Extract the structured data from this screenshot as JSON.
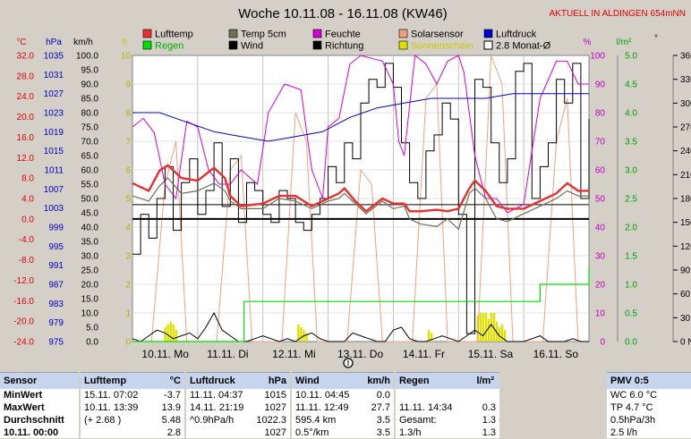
{
  "title": "Woche 10.11.08 - 16.11.08 (KW46)",
  "location_banner": "AKTUELL IN ALDINGEN 654mNN",
  "colors": {
    "lufttemp": "#e83030",
    "temp5cm": "#707058",
    "feuchte": "#d800d8",
    "solarsensor": "#f0a080",
    "luftdruck": "#0000d0",
    "regen": "#00e000",
    "wind": "#000000",
    "richtung": "#000000",
    "sonnenschein": "#e0e000",
    "monat": "#000000",
    "left_red": "#e00000",
    "left_blue": "#0000c0",
    "right_magenta": "#c000c0",
    "right_green": "#00a000"
  },
  "legend": [
    {
      "key": "lufttemp",
      "label": "Lufttemp",
      "swatch": "fill"
    },
    {
      "key": "temp5cm",
      "label": "Temp 5cm",
      "swatch": "fill"
    },
    {
      "key": "feuchte",
      "label": "Feuchte",
      "swatch": "fill"
    },
    {
      "key": "solarsensor",
      "label": "Solarsensor",
      "swatch": "fill"
    },
    {
      "key": "luftdruck",
      "label": "Luftdruck",
      "swatch": "fill"
    },
    {
      "key": "regen",
      "label": "Regen",
      "swatch": "fill"
    },
    {
      "key": "wind",
      "label": "Wind",
      "swatch": "fill"
    },
    {
      "key": "richtung",
      "label": "Richtung",
      "swatch": "fill"
    },
    {
      "key": "sonnenschein",
      "label": "Sonnenschein",
      "swatch": "fill"
    },
    {
      "key": "monat",
      "label": "2.8 Monat-Ø",
      "swatch": "outline"
    }
  ],
  "axis_headers": {
    "temp": "°C",
    "hpa": "hPa",
    "kmh": "km/h",
    "h": "h",
    "pct": "%",
    "lm2": "l/m²",
    "deg": "°"
  },
  "axes": {
    "temp": [
      "32.0",
      "28.0",
      "24.0",
      "20.0",
      "16.0",
      "12.0",
      "8.0",
      "4.0",
      "0.0",
      "-4.0",
      "-8.0",
      "-12.0",
      "-16.0",
      "-20.0",
      "-24.0"
    ],
    "hpa": [
      "1035",
      "1031",
      "1027",
      "1023",
      "1019",
      "1015",
      "1011",
      "1007",
      "1003",
      "999",
      "995",
      "991",
      "987",
      "983",
      "979",
      "975"
    ],
    "kmh": [
      "100.0",
      "95.0",
      "90.0",
      "85.0",
      "80.0",
      "75.0",
      "70.0",
      "65.0",
      "60.0",
      "55.0",
      "50.0",
      "45.0",
      "40.0",
      "35.0",
      "30.0",
      "25.0",
      "20.0",
      "15.0",
      "10.0",
      "5.0",
      "0.0"
    ],
    "h": [
      "10",
      "9",
      "8",
      "7",
      "6",
      "5",
      "4",
      "3",
      "2",
      "1",
      "0"
    ],
    "pct": [
      "100",
      "90",
      "80",
      "70",
      "60",
      "50",
      "40",
      "30",
      "20",
      "10",
      "0"
    ],
    "lm2": [
      "5.0",
      "4.5",
      "4.0",
      "3.5",
      "3.0",
      "2.5",
      "2.0",
      "1.5",
      "1.0",
      "0.5",
      "0.0"
    ],
    "deg": [
      "360 N",
      "330",
      "300",
      "270 W",
      "240",
      "210",
      "180 S",
      "150",
      "120",
      "90 O",
      "60",
      "30",
      "0 N"
    ]
  },
  "days": [
    "10.11. Mo",
    "11.11. Di",
    "12.11. Mi",
    "13.11. Do",
    "14.11. Fr",
    "15.11. Sa",
    "16.11. So"
  ],
  "chart_data": {
    "type": "line",
    "title": "Woche 10.11.08 - 16.11.08 (KW46)",
    "x": "hours since 10.11. 00:00 (0-168)",
    "series": [
      {
        "name": "Lufttemp",
        "unit": "°C",
        "x": [
          0,
          6,
          10,
          13,
          18,
          24,
          30,
          34,
          36,
          40,
          48,
          54,
          60,
          66,
          72,
          76,
          78,
          82,
          86,
          92,
          96,
          100,
          102,
          106,
          112,
          116,
          120,
          124,
          126,
          130,
          134,
          138,
          144,
          150,
          156,
          160,
          164,
          168
        ],
        "y": [
          7.0,
          5.5,
          9.5,
          10.5,
          8.0,
          7.5,
          10.0,
          8.0,
          4.5,
          2.5,
          3.0,
          4.5,
          4.5,
          2.5,
          4.0,
          5.0,
          6.0,
          3.5,
          1.5,
          4.0,
          3.0,
          3.0,
          1.5,
          1.5,
          1.8,
          1.5,
          2.0,
          6.0,
          7.5,
          5.5,
          2.5,
          2.0,
          2.0,
          3.5,
          5.0,
          7.0,
          5.5,
          5.5
        ]
      },
      {
        "name": "Temp 5cm",
        "unit": "°C",
        "x": [
          0,
          6,
          10,
          13,
          18,
          24,
          30,
          34,
          36,
          40,
          48,
          54,
          60,
          66,
          72,
          76,
          78,
          82,
          86,
          92,
          96,
          100,
          102,
          106,
          112,
          116,
          120,
          124,
          126,
          130,
          134,
          138,
          144,
          150,
          156,
          160,
          164,
          168
        ],
        "y": [
          4.5,
          3.5,
          6.5,
          8.0,
          5.0,
          5.5,
          7.0,
          5.5,
          3.5,
          2.0,
          2.0,
          4.0,
          3.5,
          2.0,
          3.5,
          4.0,
          5.0,
          3.0,
          1.0,
          3.5,
          2.0,
          2.5,
          0.0,
          -1.0,
          -1.5,
          0.0,
          -2.0,
          5.0,
          6.0,
          4.0,
          0.0,
          -0.5,
          1.0,
          2.5,
          4.0,
          5.5,
          4.5,
          4.5
        ]
      },
      {
        "name": "Feuchte",
        "unit": "%",
        "x": [
          0,
          4,
          8,
          12,
          16,
          20,
          24,
          28,
          32,
          36,
          40,
          46,
          50,
          56,
          62,
          66,
          70,
          72,
          76,
          80,
          84,
          88,
          92,
          96,
          98,
          100,
          104,
          108,
          112,
          116,
          120,
          122,
          126,
          130,
          134,
          138,
          144,
          150,
          156,
          160,
          164,
          168
        ],
        "y": [
          75,
          78,
          73,
          55,
          50,
          77,
          75,
          60,
          55,
          55,
          60,
          55,
          80,
          90,
          88,
          60,
          50,
          75,
          78,
          97,
          100,
          99,
          98,
          90,
          70,
          65,
          100,
          97,
          90,
          98,
          100,
          94,
          65,
          50,
          50,
          45,
          48,
          85,
          98,
          98,
          90,
          90
        ]
      },
      {
        "name": "Luftdruck",
        "unit": "hPa",
        "x": [
          0,
          10,
          20,
          30,
          40,
          50,
          60,
          70,
          80,
          90,
          100,
          110,
          120,
          130,
          140,
          150,
          160,
          168
        ],
        "y": [
          1023,
          1023,
          1021,
          1019,
          1018,
          1017,
          1018,
          1019,
          1022,
          1024,
          1025,
          1026,
          1026,
          1026,
          1027,
          1027,
          1027,
          1027
        ]
      },
      {
        "name": "Wind",
        "unit": "km/h",
        "x": [
          0,
          3,
          6,
          9,
          12,
          15,
          18,
          21,
          24,
          27,
          30,
          33,
          36,
          39,
          42,
          45,
          48,
          51,
          54,
          57,
          60,
          63,
          66,
          69,
          72,
          75,
          78,
          81,
          84,
          87,
          90,
          93,
          96,
          99,
          102,
          105,
          108,
          111,
          114,
          117,
          120,
          123,
          126,
          129,
          132,
          135,
          138,
          141,
          144,
          147,
          150,
          153,
          156,
          159,
          162,
          165,
          168
        ],
        "y": [
          1,
          0,
          2,
          4,
          3,
          1,
          2,
          3,
          1,
          5,
          10,
          4,
          2,
          0,
          0,
          1,
          2,
          1,
          0,
          1,
          0,
          2,
          3,
          1,
          0,
          0,
          0,
          3,
          2,
          1,
          0,
          0,
          4,
          5,
          1,
          0,
          0,
          1,
          2,
          1,
          0,
          2,
          4,
          2,
          6,
          2,
          0,
          0,
          0,
          1,
          2,
          0,
          0,
          0,
          1,
          0,
          0
        ]
      },
      {
        "name": "Richtung",
        "unit": "°",
        "x": [
          0,
          3,
          6,
          9,
          12,
          15,
          18,
          21,
          24,
          27,
          30,
          33,
          36,
          39,
          42,
          45,
          48,
          51,
          54,
          57,
          60,
          63,
          66,
          69,
          72,
          75,
          78,
          81,
          84,
          87,
          90,
          93,
          96,
          99,
          102,
          105,
          108,
          111,
          114,
          117,
          120,
          123,
          126,
          129,
          132,
          135,
          138,
          141,
          144,
          147,
          150,
          153,
          156,
          159,
          162,
          165,
          168
        ],
        "y": [
          110,
          160,
          130,
          180,
          220,
          140,
          200,
          230,
          160,
          190,
          250,
          170,
          230,
          150,
          200,
          190,
          160,
          150,
          190,
          180,
          150,
          140,
          160,
          180,
          220,
          200,
          250,
          230,
          300,
          330,
          320,
          350,
          320,
          250,
          200,
          180,
          240,
          260,
          300,
          280,
          160,
          10,
          330,
          320,
          250,
          200,
          230,
          340,
          350,
          180,
          220,
          250,
          330,
          300,
          350,
          180,
          280
        ]
      },
      {
        "name": "Regen",
        "unit": "l/m²",
        "x": [
          0,
          40,
          41,
          104,
          140,
          150,
          156,
          166,
          168
        ],
        "y": [
          0,
          0,
          0.7,
          0.7,
          0.7,
          1.0,
          1.0,
          1.0,
          1.3
        ]
      },
      {
        "name": "Solarsensor",
        "unit": "%",
        "x": [
          0,
          7,
          12,
          16,
          20,
          31,
          36,
          40,
          44,
          55,
          60,
          64,
          68,
          79,
          84,
          88,
          92,
          103,
          108,
          112,
          116,
          127,
          132,
          136,
          140,
          151,
          156,
          160,
          164,
          168
        ],
        "y": [
          0,
          0,
          55,
          70,
          0,
          0,
          60,
          65,
          0,
          0,
          80,
          70,
          0,
          0,
          60,
          55,
          0,
          0,
          85,
          90,
          0,
          0,
          100,
          90,
          0,
          0,
          70,
          85,
          0,
          0
        ]
      },
      {
        "name": "Sonnenschein",
        "unit": "h",
        "x": [
          12,
          13,
          14,
          15,
          16,
          61,
          62,
          63,
          64,
          109,
          110,
          127,
          128,
          129,
          130,
          131,
          132,
          133,
          134,
          135,
          136,
          137
        ],
        "y": [
          0.5,
          0.6,
          0.7,
          0.6,
          0.4,
          0.6,
          0.5,
          0.4,
          0.3,
          0.4,
          0.3,
          0.9,
          1.0,
          1.0,
          1.0,
          0.8,
          1.0,
          1.0,
          0.7,
          0.5,
          0.6,
          0.4
        ]
      }
    ],
    "reference_lines": [
      {
        "name": "2.8 Monat-Ø",
        "unit": "°C",
        "y": 2.8
      },
      {
        "name": "0 °C",
        "unit": "°C",
        "y": 0
      }
    ],
    "axis_ranges": {
      "temp": [
        -24,
        32
      ],
      "hpa": [
        975,
        1035
      ],
      "kmh": [
        0,
        100
      ],
      "h": [
        0,
        10
      ],
      "pct": [
        0,
        100
      ],
      "lm2": [
        0,
        5
      ],
      "deg": [
        0,
        360
      ]
    },
    "grid": true,
    "legend": "top"
  },
  "stats": {
    "sensor": {
      "header": "Sensor",
      "rows": [
        "MinWert",
        "MaxWert",
        "Durchschnitt",
        "10.11. 00:00"
      ]
    },
    "lufttemp": {
      "header": "Lufttemp",
      "unit": "°C",
      "rows": [
        [
          "15.11.  07:02",
          "-3.7"
        ],
        [
          "10.11.  13:39",
          "13.9"
        ],
        [
          "(+ 2.68 )",
          "5.48"
        ],
        [
          "",
          "2.8"
        ]
      ]
    },
    "luftdruck": {
      "header": "Luftdruck",
      "unit": "hPa",
      "rows": [
        [
          "11.11.  04:37",
          "1015"
        ],
        [
          "14.11.  21:19",
          "1027"
        ],
        [
          "^0.9hPa/h",
          "1022.3"
        ],
        [
          "",
          "1027"
        ]
      ]
    },
    "wind": {
      "header": "Wind",
      "unit": "km/h",
      "rows": [
        [
          "10.11.  04:45",
          "0.0"
        ],
        [
          "11.11.  12:49",
          "27.7"
        ],
        [
          "595.4 km",
          "3.5"
        ],
        [
          "0.5°/km",
          "3.5"
        ]
      ]
    },
    "regen": {
      "header": "Regen",
      "unit": "l/m²",
      "rows": [
        [
          "",
          ""
        ],
        [
          "11.11.  14:34",
          "0.3"
        ],
        [
          "Gesamt:",
          "1.3"
        ],
        [
          "1.3/h",
          "1.3"
        ]
      ]
    },
    "pmv": {
      "header": "PMV 0:5",
      "rows": [
        "WC 6.0 °C",
        "TP 4.7 °C",
        "0.5hPa/3h",
        "2.5 l/h"
      ]
    }
  }
}
